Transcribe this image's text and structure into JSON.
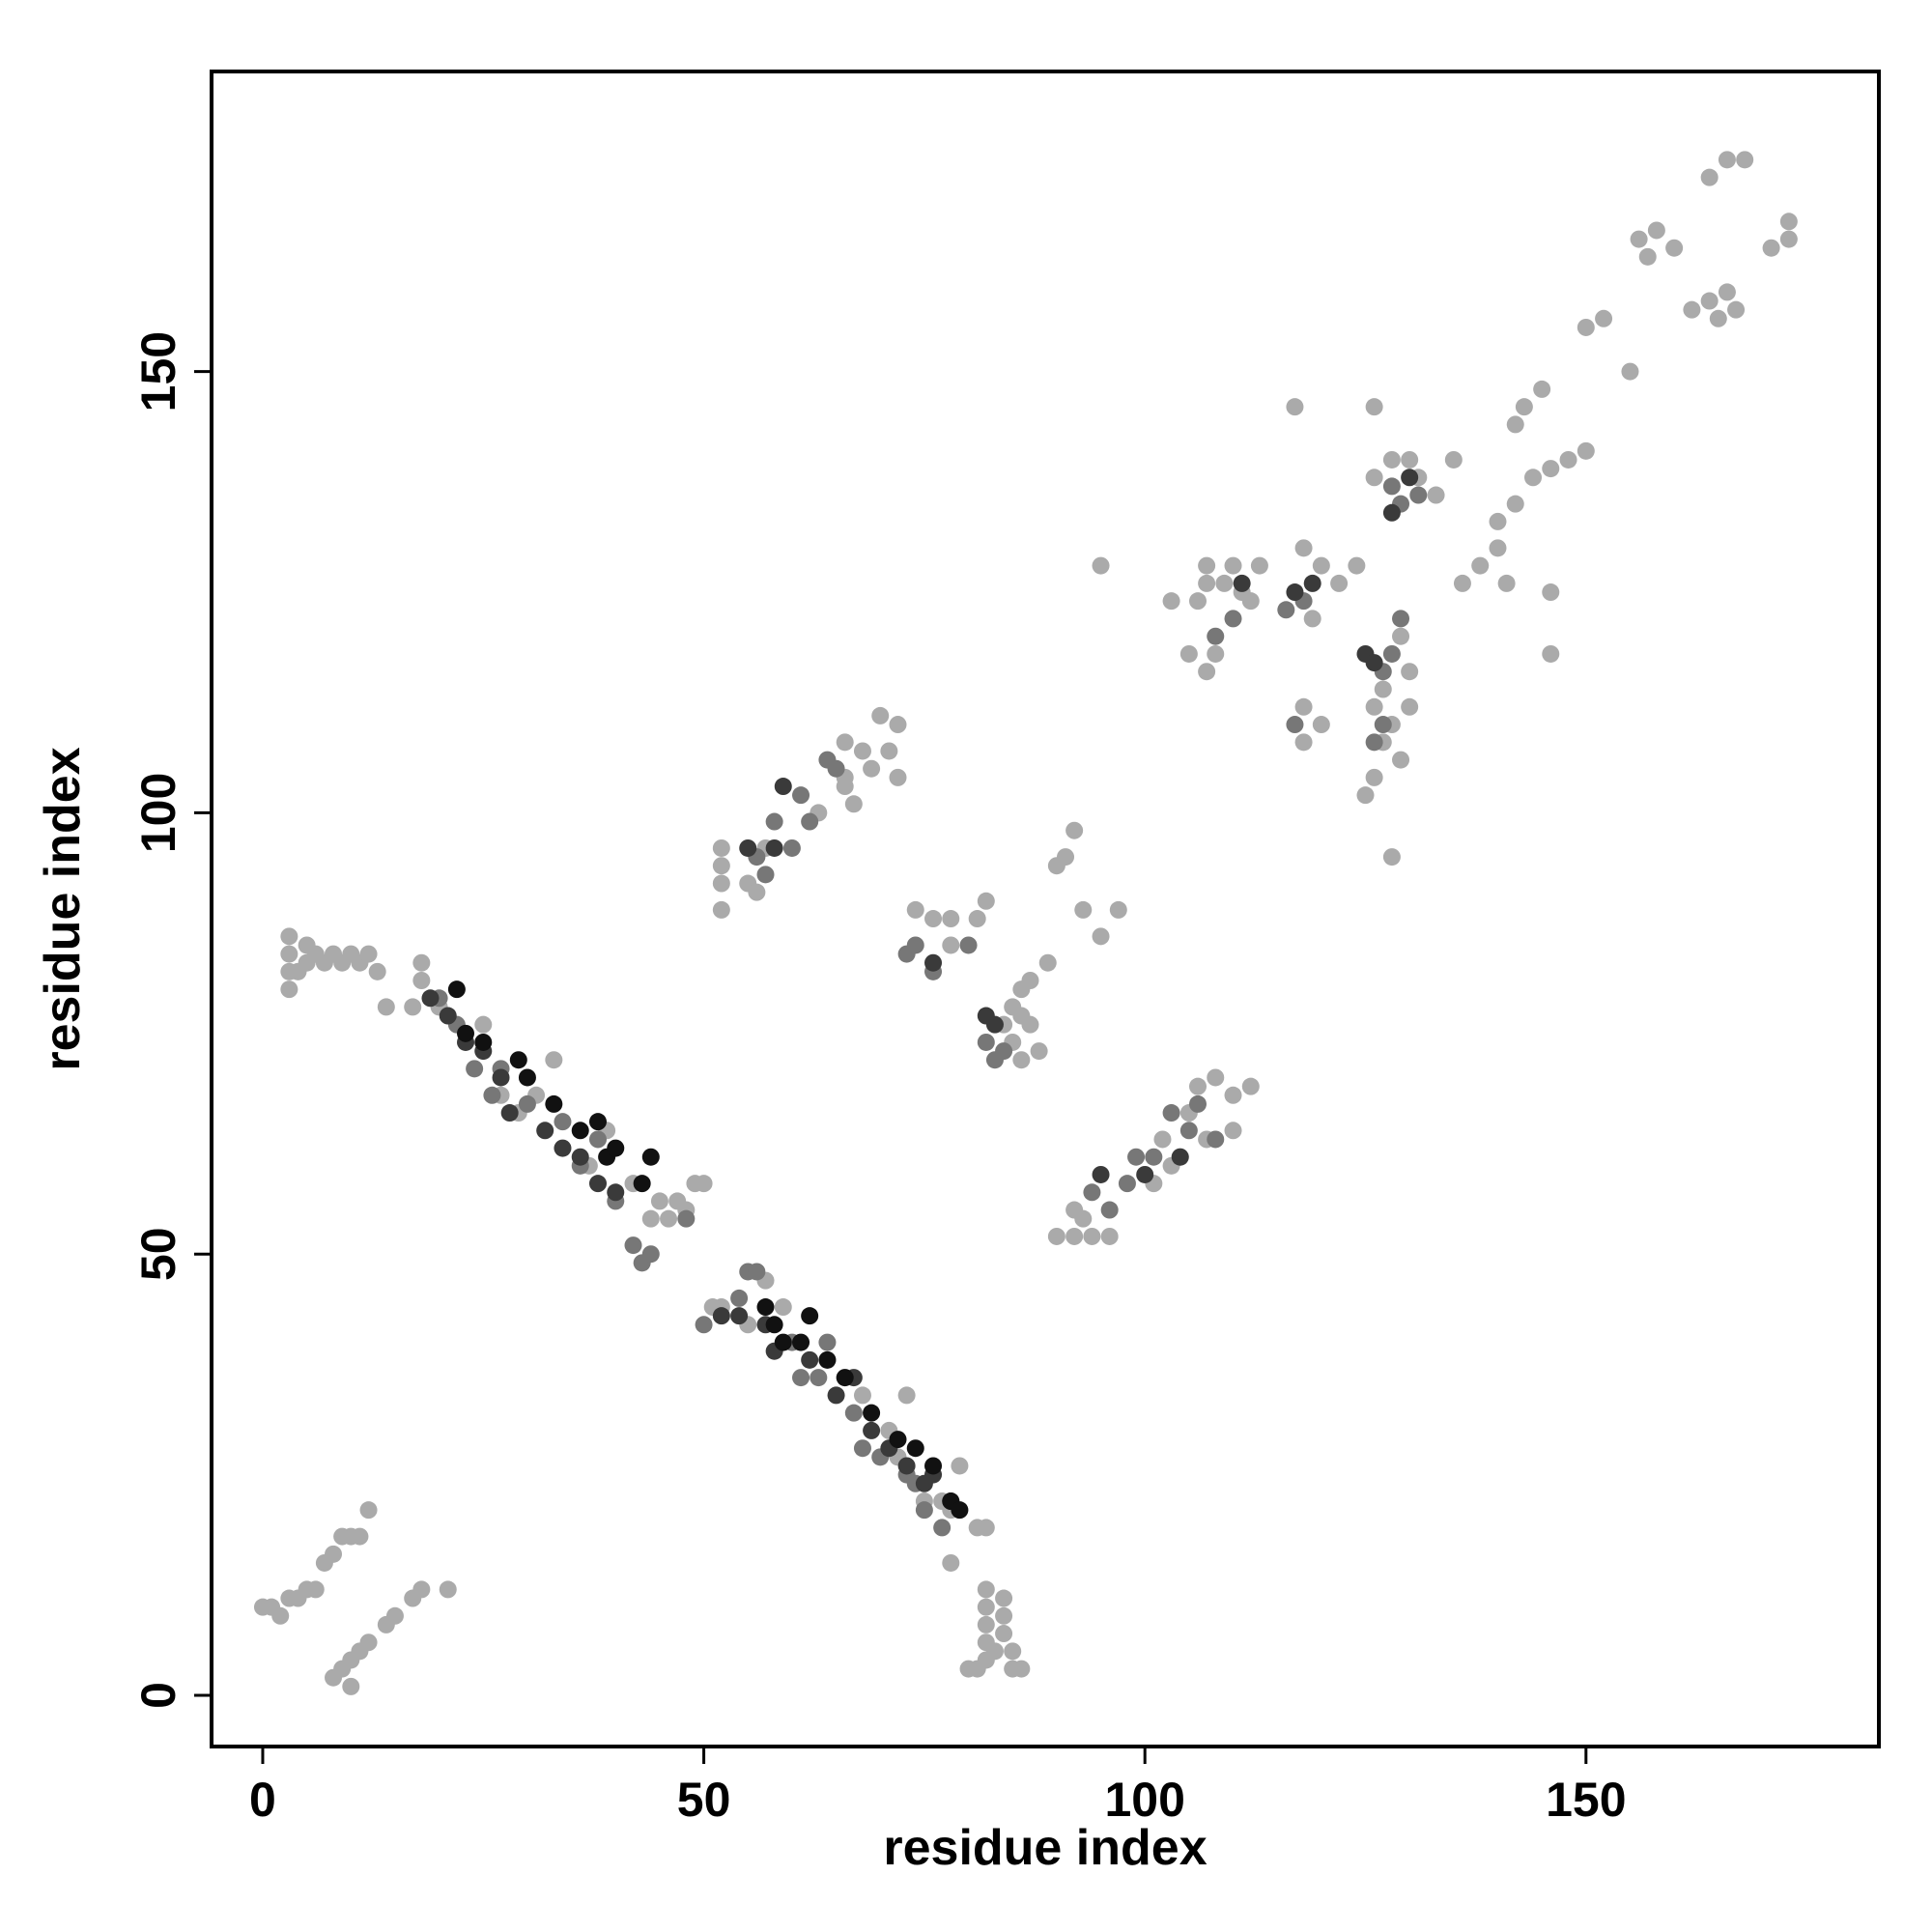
{
  "chart_data": {
    "type": "scatter",
    "xlabel": "residue index",
    "ylabel": "residue index",
    "xlim": [
      -5.8,
      183.2
    ],
    "ylim": [
      -5.8,
      184
    ],
    "xticks": [
      0,
      50,
      100,
      150
    ],
    "yticks": [
      0,
      50,
      100,
      150
    ],
    "series": [
      {
        "color": "#aaaaaa",
        "x": [
          0,
          1,
          2,
          3,
          4,
          5,
          6,
          7,
          8,
          9,
          10,
          11,
          12,
          8,
          9,
          10,
          10,
          11,
          12,
          14,
          15,
          17,
          18,
          21,
          80,
          81,
          82,
          82,
          82,
          82,
          82,
          83,
          84,
          84,
          84,
          85,
          86,
          85,
          3,
          3,
          3,
          3,
          4,
          5,
          5,
          6,
          7,
          8,
          9,
          10,
          11,
          12,
          13,
          14,
          18,
          18,
          17,
          20,
          25,
          27,
          29,
          31,
          33,
          37,
          39,
          42,
          44,
          45,
          46,
          47,
          48,
          49,
          50,
          51,
          52,
          55,
          57,
          59,
          64,
          66,
          68,
          71,
          72,
          73,
          75,
          77,
          78,
          79,
          78,
          81,
          82,
          52,
          52,
          52,
          52,
          55,
          56,
          57,
          63,
          66,
          67,
          66,
          68,
          70,
          71,
          72,
          72,
          66,
          69,
          76,
          78,
          78,
          74,
          81,
          82,
          84,
          85,
          86,
          86,
          87,
          88,
          86,
          85,
          87,
          89,
          90,
          91,
          92,
          93,
          95,
          97,
          90,
          92,
          94,
          96,
          92,
          93,
          101,
          104,
          105,
          106,
          108,
          110,
          110,
          112,
          102,
          103,
          107,
          105,
          107,
          108,
          106,
          107,
          107,
          109,
          110,
          111,
          112,
          113,
          103,
          118,
          120,
          122,
          124,
          119,
          118,
          118,
          120,
          126,
          127,
          128,
          129,
          130,
          126,
          128,
          125,
          127,
          130,
          129,
          126,
          128,
          130,
          131,
          133,
          135,
          126,
          117,
          95,
          136,
          138,
          140,
          141,
          140,
          142,
          146,
          146,
          144,
          146,
          148,
          150,
          142,
          143,
          145,
          150,
          152,
          155,
          156,
          157,
          158,
          160,
          162,
          164,
          165,
          166,
          167,
          164,
          166,
          168,
          171,
          173,
          173
        ],
        "y": [
          10,
          10,
          9,
          11,
          11,
          12,
          12,
          15,
          16,
          18,
          18,
          18,
          21,
          2,
          3,
          4,
          1,
          5,
          6,
          8,
          9,
          11,
          12,
          12,
          3,
          3,
          4,
          6,
          8,
          10,
          12,
          5,
          7,
          9,
          11,
          5,
          3,
          3,
          80,
          82,
          84,
          86,
          82,
          83,
          85,
          84,
          83,
          84,
          83,
          84,
          83,
          84,
          82,
          78,
          81,
          83,
          78,
          78,
          76,
          68,
          66,
          68,
          72,
          60,
          64,
          58,
          54,
          56,
          54,
          56,
          55,
          58,
          58,
          44,
          44,
          42,
          47,
          44,
          38,
          36,
          34,
          30,
          27,
          34,
          22,
          22,
          21,
          26,
          15,
          19,
          19,
          89,
          92,
          94,
          96,
          92,
          91,
          96,
          100,
          104,
          101,
          108,
          107,
          111,
          107,
          104,
          110,
          103,
          105,
          88,
          88,
          85,
          89,
          88,
          90,
          76,
          74,
          72,
          77,
          76,
          73,
          80,
          78,
          81,
          83,
          94,
          95,
          98,
          89,
          86,
          89,
          52,
          52,
          52,
          52,
          55,
          54,
          58,
          61,
          66,
          69,
          70,
          68,
          64,
          69,
          63,
          60,
          63,
          118,
          116,
          118,
          124,
          126,
          128,
          126,
          128,
          125,
          124,
          128,
          124,
          130,
          128,
          126,
          128,
          122,
          112,
          108,
          110,
          112,
          108,
          110,
          106,
          112,
          104,
          95,
          102,
          114,
          116,
          120,
          138,
          140,
          140,
          138,
          136,
          140,
          146,
          146,
          128,
          126,
          128,
          130,
          126,
          133,
          135,
          118,
          125,
          138,
          139,
          140,
          141,
          144,
          146,
          148,
          155,
          156,
          150,
          165,
          163,
          166,
          164,
          157,
          158,
          156,
          159,
          157,
          172,
          174,
          174,
          164,
          165,
          167
        ]
      },
      {
        "color": "#777777",
        "x": [
          20,
          22,
          24,
          26,
          27,
          30,
          34,
          36,
          38,
          40,
          42,
          43,
          44,
          48,
          50,
          54,
          55,
          56,
          60,
          61,
          63,
          64,
          67,
          68,
          70,
          73,
          74,
          75,
          77,
          56,
          57,
          58,
          60,
          61,
          62,
          64,
          65,
          73,
          74,
          76,
          80,
          82,
          83,
          84,
          94,
          96,
          98,
          99,
          101,
          103,
          105,
          106,
          108,
          116,
          118,
          117,
          126,
          127,
          128,
          129,
          127,
          128,
          129,
          131,
          110,
          108
        ],
        "y": [
          79,
          76,
          71,
          68,
          71,
          67,
          65,
          60,
          63,
          56,
          51,
          49,
          50,
          54,
          42,
          45,
          48,
          48,
          40,
          36,
          36,
          40,
          32,
          28,
          27,
          25,
          24,
          21,
          19,
          95,
          93,
          99,
          96,
          102,
          99,
          106,
          105,
          84,
          85,
          82,
          85,
          74,
          72,
          73,
          57,
          55,
          58,
          61,
          61,
          66,
          64,
          67,
          63,
          123,
          124,
          110,
          108,
          116,
          118,
          122,
          110,
          137,
          135,
          136,
          122,
          120
        ]
      },
      {
        "color": "#3a3a3a",
        "x": [
          19,
          21,
          23,
          25,
          27,
          28,
          32,
          34,
          36,
          38,
          40,
          52,
          54,
          57,
          58,
          62,
          65,
          67,
          69,
          71,
          73,
          75,
          76,
          78,
          55,
          58,
          59,
          76,
          83,
          82,
          95,
          100,
          104,
          117,
          119,
          125,
          126,
          128,
          130,
          111
        ],
        "y": [
          79,
          77,
          74,
          73,
          70,
          66,
          64,
          62,
          61,
          58,
          57,
          43,
          43,
          42,
          39,
          38,
          34,
          36,
          30,
          28,
          26,
          24,
          25,
          22,
          96,
          96,
          103,
          83,
          76,
          77,
          59,
          59,
          61,
          125,
          126,
          118,
          117,
          134,
          138,
          126
        ]
      },
      {
        "color": "#111111",
        "x": [
          22,
          23,
          25,
          29,
          30,
          33,
          36,
          38,
          39,
          40,
          43,
          44,
          57,
          58,
          59,
          61,
          62,
          64,
          66,
          69,
          72,
          74,
          76,
          78,
          79
        ],
        "y": [
          80,
          75,
          74,
          72,
          70,
          67,
          64,
          65,
          61,
          62,
          58,
          61,
          44,
          42,
          40,
          40,
          43,
          38,
          36,
          32,
          29,
          28,
          26,
          22,
          21
        ]
      }
    ]
  }
}
